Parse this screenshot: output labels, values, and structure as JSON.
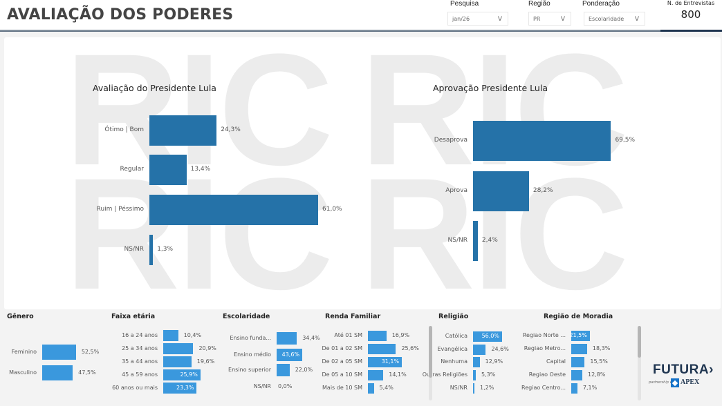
{
  "header": {
    "title": "AVALIAÇÃO DOS PODERES"
  },
  "filters": [
    {
      "label": "Pesquisa",
      "value": "jan/26",
      "chevron": "V"
    },
    {
      "label": "Região",
      "value": "PR",
      "chevron": "V"
    },
    {
      "label": "Ponderação",
      "value": "Escolaridade",
      "chevron": "V"
    }
  ],
  "interviews": {
    "label": "N. de Entrevistas",
    "value": "800"
  },
  "watermark": "RIC",
  "main_charts": [
    {
      "title": "Avaliação do Presidente Lula",
      "items": [
        {
          "label": "Ótimo | Bom",
          "value": 24.3,
          "text": "24,3%"
        },
        {
          "label": "Regular",
          "value": 13.4,
          "text": "13,4%"
        },
        {
          "label": "Ruim | Péssimo",
          "value": 61.0,
          "text": "61,0%"
        },
        {
          "label": "NS/NR",
          "value": 1.3,
          "text": "1,3%"
        }
      ]
    },
    {
      "title": "Aprovação Presidente Lula",
      "items": [
        {
          "label": "Desaprova",
          "value": 69.5,
          "text": "69,5%"
        },
        {
          "label": "Aprova",
          "value": 28.2,
          "text": "28,2%"
        },
        {
          "label": "NS/NR",
          "value": 2.4,
          "text": "2,4%"
        }
      ]
    }
  ],
  "segments": [
    {
      "title": "Gênero",
      "items": [
        {
          "label": "Feminino",
          "value": 52.5,
          "text": "52,5%"
        },
        {
          "label": "Masculino",
          "value": 47.5,
          "text": "47,5%"
        }
      ]
    },
    {
      "title": "Faixa etária",
      "items": [
        {
          "label": "16 a 24 anos",
          "value": 10.4,
          "text": "10,4%"
        },
        {
          "label": "25 a 34 anos",
          "value": 20.9,
          "text": "20,9%"
        },
        {
          "label": "35 a 44 anos",
          "value": 19.6,
          "text": "19,6%"
        },
        {
          "label": "45 a 59 anos",
          "value": 25.9,
          "text": "25,9%",
          "highlight": true
        },
        {
          "label": "60 anos ou mais",
          "value": 23.3,
          "text": "23,3%",
          "highlight": true
        }
      ]
    },
    {
      "title": "Escolaridade",
      "items": [
        {
          "label": "Ensino funda...",
          "value": 34.4,
          "text": "34,4%"
        },
        {
          "label": "Ensino médio",
          "value": 43.6,
          "text": "43,6%",
          "highlight": true
        },
        {
          "label": "Ensino superior",
          "value": 22.0,
          "text": "22,0%"
        },
        {
          "label": "NS/NR",
          "value": 0.0,
          "text": "0,0%"
        }
      ]
    },
    {
      "title": "Renda Familiar",
      "items": [
        {
          "label": "Até 01 SM",
          "value": 16.9,
          "text": "16,9%"
        },
        {
          "label": "De 01 a 02 SM",
          "value": 25.6,
          "text": "25,6%"
        },
        {
          "label": "De 02 a 05 SM",
          "value": 31.1,
          "text": "31,1%",
          "highlight": true
        },
        {
          "label": "De 05 a 10 SM",
          "value": 14.1,
          "text": "14,1%"
        },
        {
          "label": "Mais de 10 SM",
          "value": 5.4,
          "text": "5,4%"
        }
      ]
    },
    {
      "title": "Religião",
      "items": [
        {
          "label": "Católica",
          "value": 56.0,
          "text": "56,0%",
          "highlight": true
        },
        {
          "label": "Evangélica",
          "value": 24.6,
          "text": "24,6%"
        },
        {
          "label": "Nenhuma",
          "value": 12.9,
          "text": "12,9%"
        },
        {
          "label": "Outras Religiões",
          "value": 5.3,
          "text": "5,3%"
        },
        {
          "label": "NS/NR",
          "value": 1.2,
          "text": "1,2%"
        }
      ]
    },
    {
      "title": "Região de Moradia",
      "items": [
        {
          "label": "Regiao Norte ...",
          "value": 21.5,
          "text": "21,5%",
          "highlight": true
        },
        {
          "label": "Regiao Metro...",
          "value": 18.3,
          "text": "18,3%"
        },
        {
          "label": "Capital",
          "value": 15.5,
          "text": "15,5%"
        },
        {
          "label": "Regiao Oeste",
          "value": 12.8,
          "text": "12,8%"
        },
        {
          "label": "Regiao Centro...",
          "value": 7.1,
          "text": "7,1%"
        }
      ]
    }
  ],
  "brand": {
    "name": "FUTURA",
    "tagline": "partnership with",
    "partner": "APEX"
  },
  "colors": {
    "main_bar": "#2572a8",
    "segment_bar": "#3a98dd",
    "header_line": "#1f3550"
  }
}
